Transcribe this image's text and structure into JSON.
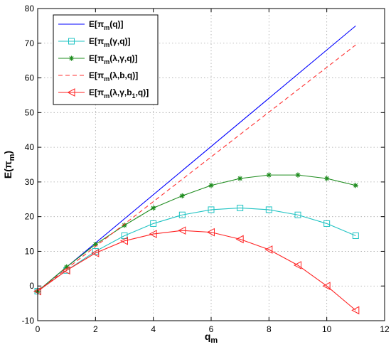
{
  "chart_data": {
    "type": "line",
    "xlim": [
      0,
      12
    ],
    "ylim": [
      -10,
      80
    ],
    "x_ticks": [
      0,
      2,
      4,
      6,
      8,
      10,
      12
    ],
    "y_ticks": [
      -10,
      0,
      10,
      20,
      30,
      40,
      50,
      60,
      70,
      80
    ],
    "grid": true,
    "legend_position": "top-left",
    "xlabel": {
      "main": "q",
      "sub": "m"
    },
    "ylabel": {
      "main": "E(π",
      "sub": "m",
      "tail": ")"
    },
    "series": [
      {
        "legend": [
          {
            "t": "E[π"
          },
          {
            "t": "m",
            "sub": true
          },
          {
            "t": "(q)]"
          }
        ],
        "color": "#0000ff",
        "dash": "solid",
        "marker": "none",
        "x": [
          0,
          11
        ],
        "y": [
          -1.5,
          75
        ]
      },
      {
        "legend": [
          {
            "t": "E[π"
          },
          {
            "t": "m",
            "sub": true
          },
          {
            "t": "(γ,q)]"
          }
        ],
        "color": "#1fc3c3",
        "dash": "solid",
        "marker": "square",
        "x": [
          0,
          1,
          2,
          3,
          4,
          5,
          6,
          7,
          8,
          9,
          10,
          11
        ],
        "y": [
          -1.5,
          4.5,
          10,
          14.5,
          18,
          20.5,
          22,
          22.5,
          22,
          20.5,
          18,
          14.5
        ]
      },
      {
        "legend": [
          {
            "t": "E[π"
          },
          {
            "t": "m",
            "sub": true
          },
          {
            "t": "(λ,γ,q)]"
          }
        ],
        "color": "#1e8c1e",
        "dash": "solid",
        "marker": "star",
        "x": [
          0,
          1,
          2,
          3,
          4,
          5,
          6,
          7,
          8,
          9,
          10,
          11
        ],
        "y": [
          -1.5,
          5.5,
          12,
          17.5,
          22.5,
          26,
          29,
          31,
          32,
          32,
          31,
          29
        ]
      },
      {
        "legend": [
          {
            "t": "E[π"
          },
          {
            "t": "m",
            "sub": true
          },
          {
            "t": "(λ,b,q)]"
          }
        ],
        "color": "#ff3030",
        "dash": "dashed",
        "marker": "none",
        "x": [
          0,
          11
        ],
        "y": [
          -1.5,
          69.5
        ]
      },
      {
        "legend": [
          {
            "t": "E[π"
          },
          {
            "t": "m",
            "sub": true
          },
          {
            "t": "(λ,γ,b"
          },
          {
            "t": "1",
            "sub": true
          },
          {
            "t": ",q)]"
          }
        ],
        "color": "#ff2222",
        "dash": "solid",
        "marker": "triangle-left",
        "x": [
          0,
          1,
          2,
          3,
          4,
          5,
          6,
          7,
          8,
          9,
          10,
          11
        ],
        "y": [
          -1.5,
          4.5,
          9.5,
          13,
          15,
          16,
          15.5,
          13.5,
          10.5,
          6,
          0,
          -7
        ]
      }
    ]
  }
}
